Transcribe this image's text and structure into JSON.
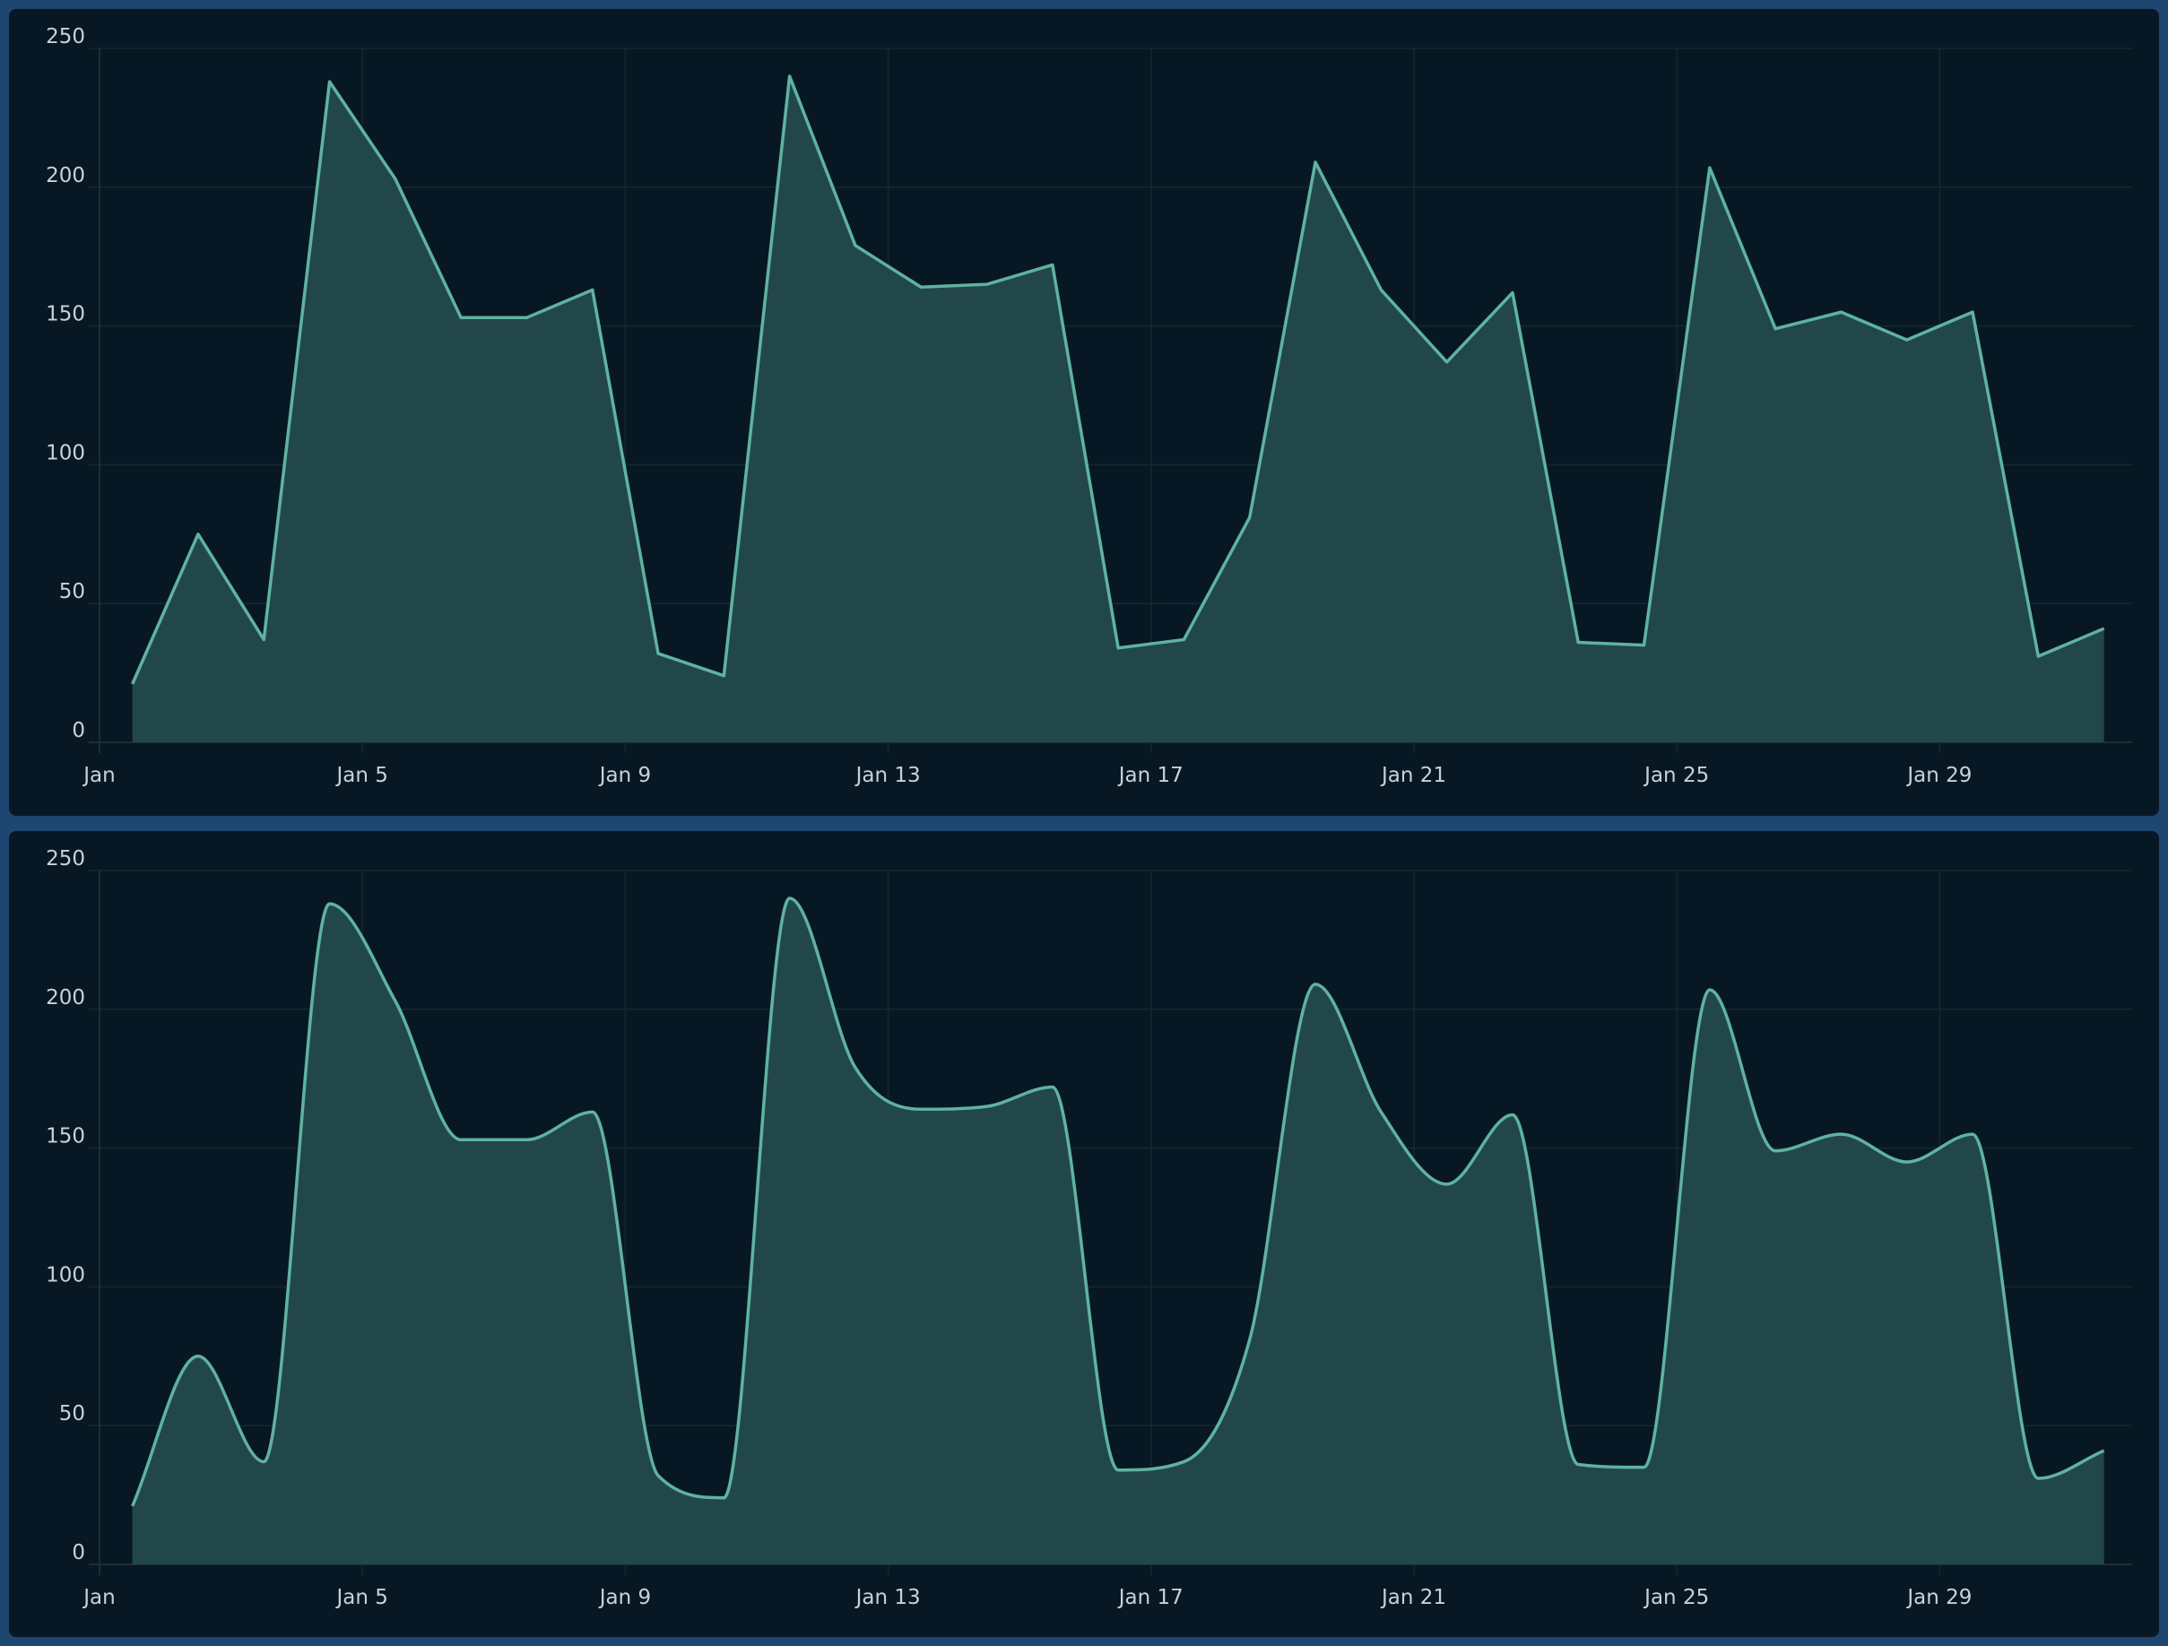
{
  "colors": {
    "background": "#1d4670",
    "panel": "#071824",
    "line": "#5fb3a0",
    "fill": "#22474b",
    "grid": "#15272f",
    "text": "#c9d1d7"
  },
  "chart_data": [
    {
      "type": "area",
      "curve": "linear",
      "x": [
        "Jan 1",
        "Jan 2",
        "Jan 3",
        "Jan 4",
        "Jan 5",
        "Jan 6",
        "Jan 7",
        "Jan 8",
        "Jan 9",
        "Jan 10",
        "Jan 11",
        "Jan 12",
        "Jan 13",
        "Jan 14",
        "Jan 15",
        "Jan 16",
        "Jan 17",
        "Jan 18",
        "Jan 19",
        "Jan 20",
        "Jan 21",
        "Jan 22",
        "Jan 23",
        "Jan 24",
        "Jan 25",
        "Jan 26",
        "Jan 27",
        "Jan 28",
        "Jan 29",
        "Jan 30",
        "Jan 31"
      ],
      "values": [
        21,
        75,
        37,
        238,
        203,
        153,
        153,
        163,
        32,
        24,
        240,
        179,
        164,
        165,
        172,
        34,
        37,
        81,
        209,
        163,
        137,
        162,
        36,
        35,
        207,
        149,
        155,
        145,
        155,
        31,
        41
      ],
      "ylim": [
        0,
        250
      ],
      "yticks": [
        "0",
        "50",
        "100",
        "150",
        "200",
        "250"
      ],
      "xticks": [
        "Jan",
        "Jan 5",
        "Jan 9",
        "Jan 13",
        "Jan 17",
        "Jan 21",
        "Jan 25",
        "Jan 29"
      ],
      "grid": true
    },
    {
      "type": "area",
      "curve": "smooth",
      "x": [
        "Jan 1",
        "Jan 2",
        "Jan 3",
        "Jan 4",
        "Jan 5",
        "Jan 6",
        "Jan 7",
        "Jan 8",
        "Jan 9",
        "Jan 10",
        "Jan 11",
        "Jan 12",
        "Jan 13",
        "Jan 14",
        "Jan 15",
        "Jan 16",
        "Jan 17",
        "Jan 18",
        "Jan 19",
        "Jan 20",
        "Jan 21",
        "Jan 22",
        "Jan 23",
        "Jan 24",
        "Jan 25",
        "Jan 26",
        "Jan 27",
        "Jan 28",
        "Jan 29",
        "Jan 30",
        "Jan 31"
      ],
      "values": [
        21,
        75,
        37,
        238,
        203,
        153,
        153,
        163,
        32,
        24,
        240,
        179,
        164,
        165,
        172,
        34,
        37,
        81,
        209,
        163,
        137,
        162,
        36,
        35,
        207,
        149,
        155,
        145,
        155,
        31,
        41
      ],
      "ylim": [
        0,
        250
      ],
      "yticks": [
        "0",
        "50",
        "100",
        "150",
        "200",
        "250"
      ],
      "xticks": [
        "Jan",
        "Jan 5",
        "Jan 9",
        "Jan 13",
        "Jan 17",
        "Jan 21",
        "Jan 25",
        "Jan 29"
      ],
      "grid": true
    }
  ]
}
